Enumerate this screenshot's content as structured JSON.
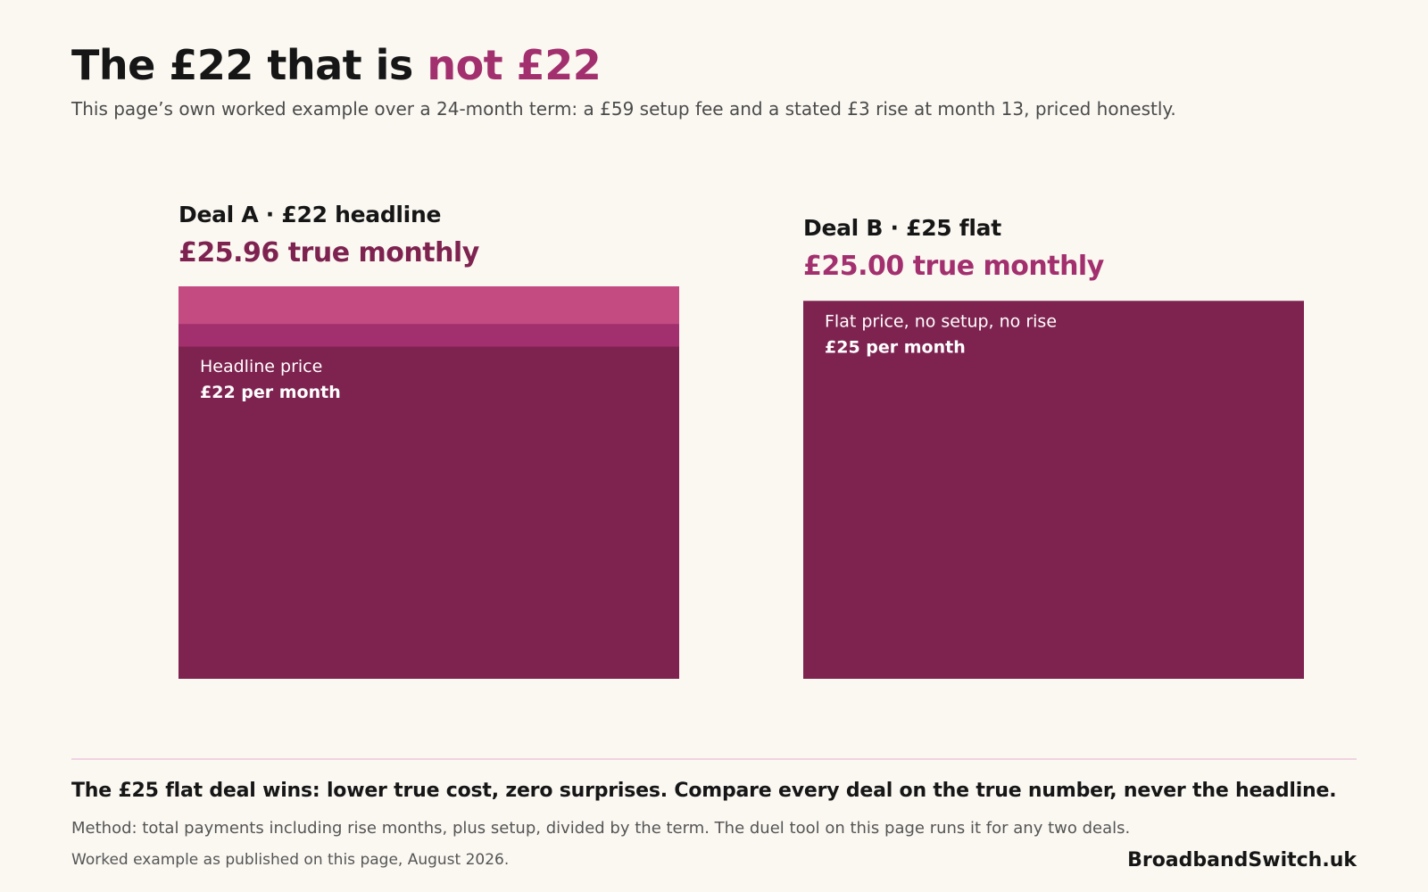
{
  "header": {
    "title_main": "The £22 that is",
    "title_accent": "not £22",
    "subtitle": "This page’s own worked example over a 24-month term: a £59 setup fee and a stated £3 rise at month 13, priced honestly."
  },
  "colors": {
    "base": "#7e2350",
    "rise": "#a3306e",
    "setup": "#c44b82",
    "deal_a_true": "#7e2350",
    "deal_b_true": "#a3306e",
    "accent": "#a3306e"
  },
  "chart_data": {
    "type": "bar",
    "stacked": true,
    "ylim": [
      0,
      25.96
    ],
    "deals": [
      {
        "title": "Deal A · £22 headline",
        "true_monthly_label": "£25.96 true monthly",
        "true_monthly": 25.96,
        "segments": [
          {
            "name": "Headline price",
            "value": 22.0,
            "label_line1": "Headline price",
            "label_line2": "£22 per month",
            "color": "#7e2350"
          },
          {
            "name": "rise",
            "value": 1.5,
            "label_line1": "",
            "label_line2": "",
            "color": "#a3306e"
          },
          {
            "name": "setup",
            "value": 2.46,
            "label_line1": "",
            "label_line2": "",
            "color": "#c44b82"
          }
        ]
      },
      {
        "title": "Deal B · £25 flat",
        "true_monthly_label": "£25.00 true monthly",
        "true_monthly": 25.0,
        "segments": [
          {
            "name": "Flat price",
            "value": 25.0,
            "label_line1": "Flat price, no setup, no rise",
            "label_line2": "£25 per month",
            "color": "#7e2350"
          }
        ]
      }
    ]
  },
  "footer": {
    "conclusion": "The £25 flat deal wins: lower true cost, zero surprises.  Compare every deal on the true number, never the headline.",
    "method": "Method: total payments including rise months, plus setup, divided by the term.  The duel tool on this page runs it for any two deals.",
    "note": "Worked example as published on this page, August 2026.",
    "brand": "BroadbandSwitch.uk"
  }
}
